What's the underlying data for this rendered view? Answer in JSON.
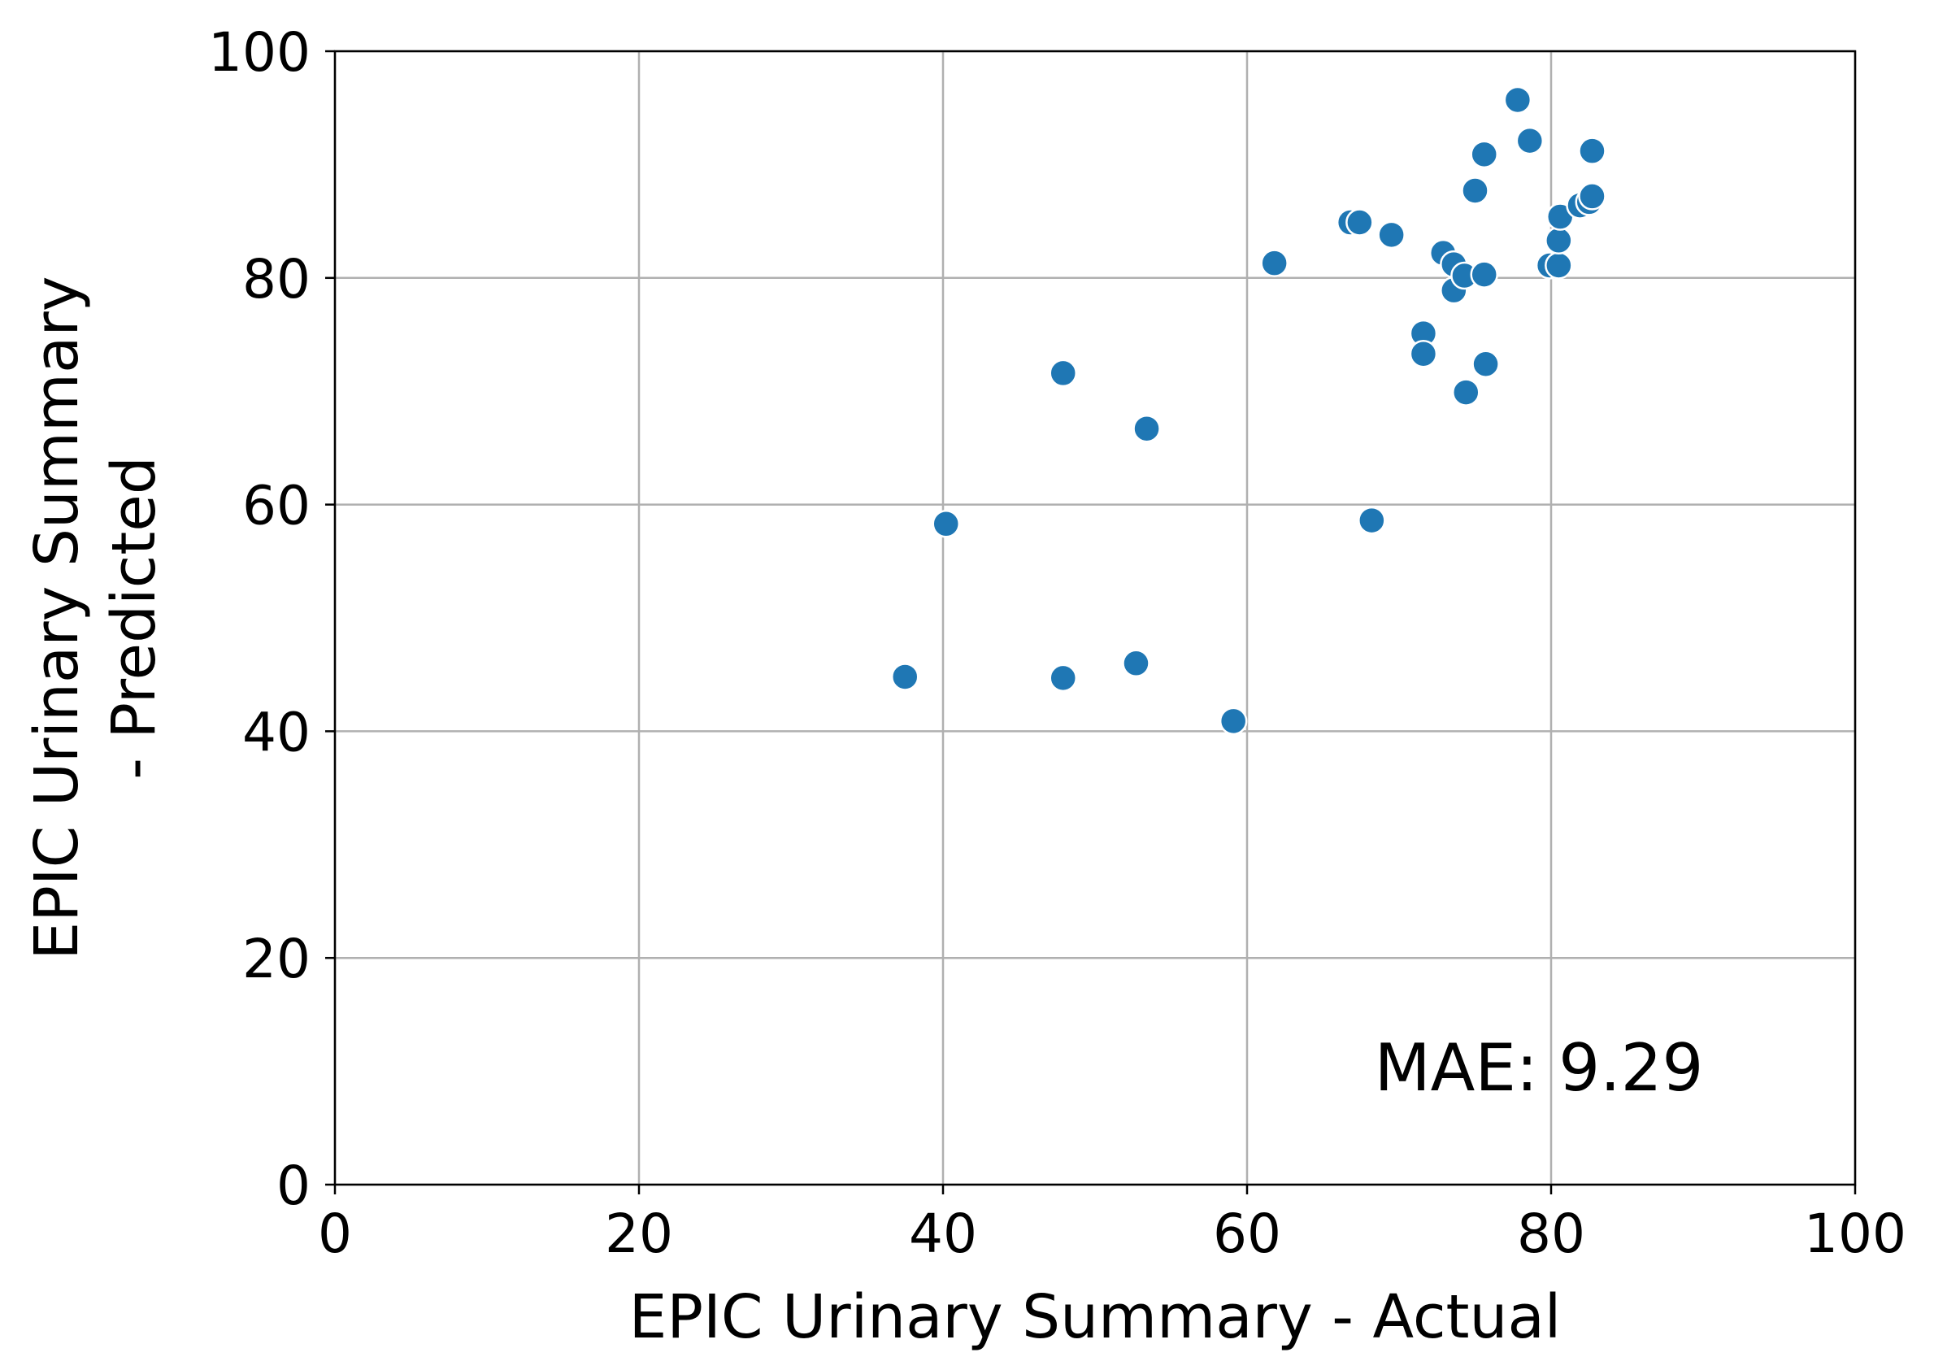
{
  "chart_data": {
    "type": "scatter",
    "title": "",
    "xlabel": "EPIC Urinary Summary - Actual",
    "ylabel_lines": [
      "EPIC Urinary Summary",
      "- Predicted"
    ],
    "xlim": [
      0,
      100
    ],
    "ylim": [
      0,
      100
    ],
    "xticks": [
      0,
      20,
      40,
      60,
      80,
      100
    ],
    "yticks": [
      0,
      20,
      40,
      60,
      80,
      100
    ],
    "xtick_labels": [
      "0",
      "20",
      "40",
      "60",
      "80",
      "100"
    ],
    "ytick_labels": [
      "0",
      "20",
      "40",
      "60",
      "80",
      "100"
    ],
    "grid": true,
    "annotation": "MAE: 9.29",
    "point_color": "#1f77b4",
    "points": [
      {
        "x": 37.5,
        "y": 44.8
      },
      {
        "x": 40.2,
        "y": 58.3
      },
      {
        "x": 47.9,
        "y": 71.6
      },
      {
        "x": 47.9,
        "y": 44.7
      },
      {
        "x": 52.7,
        "y": 46.0
      },
      {
        "x": 53.4,
        "y": 66.7
      },
      {
        "x": 59.1,
        "y": 40.9
      },
      {
        "x": 61.8,
        "y": 81.3
      },
      {
        "x": 66.8,
        "y": 84.9
      },
      {
        "x": 67.4,
        "y": 84.9
      },
      {
        "x": 68.2,
        "y": 58.6
      },
      {
        "x": 69.5,
        "y": 83.8
      },
      {
        "x": 71.6,
        "y": 75.1
      },
      {
        "x": 71.6,
        "y": 73.3
      },
      {
        "x": 72.9,
        "y": 82.2
      },
      {
        "x": 73.6,
        "y": 81.2
      },
      {
        "x": 73.6,
        "y": 78.9
      },
      {
        "x": 74.3,
        "y": 80.2
      },
      {
        "x": 74.4,
        "y": 69.9
      },
      {
        "x": 75.0,
        "y": 87.7
      },
      {
        "x": 75.6,
        "y": 90.9
      },
      {
        "x": 75.6,
        "y": 80.3
      },
      {
        "x": 75.7,
        "y": 72.4
      },
      {
        "x": 77.8,
        "y": 95.7
      },
      {
        "x": 78.6,
        "y": 92.1
      },
      {
        "x": 79.9,
        "y": 81.1
      },
      {
        "x": 80.5,
        "y": 81.1
      },
      {
        "x": 80.5,
        "y": 83.3
      },
      {
        "x": 80.6,
        "y": 85.4
      },
      {
        "x": 81.9,
        "y": 86.4
      },
      {
        "x": 82.5,
        "y": 86.7
      },
      {
        "x": 82.7,
        "y": 87.2
      },
      {
        "x": 82.7,
        "y": 91.2
      }
    ]
  }
}
